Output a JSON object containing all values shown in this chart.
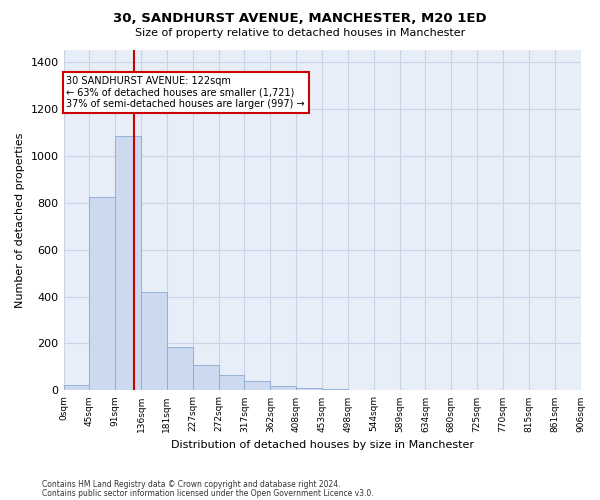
{
  "title": "30, SANDHURST AVENUE, MANCHESTER, M20 1ED",
  "subtitle": "Size of property relative to detached houses in Manchester",
  "xlabel": "Distribution of detached houses by size in Manchester",
  "ylabel": "Number of detached properties",
  "bar_color": "#ccd9ee",
  "bar_edgecolor": "#8aaad4",
  "bar_values": [
    25,
    825,
    1085,
    420,
    185,
    110,
    65,
    40,
    20,
    10,
    5,
    2,
    0,
    0,
    0,
    0,
    0,
    0,
    0,
    0
  ],
  "bin_labels": [
    "0sqm",
    "45sqm",
    "91sqm",
    "136sqm",
    "181sqm",
    "227sqm",
    "272sqm",
    "317sqm",
    "362sqm",
    "408sqm",
    "453sqm",
    "498sqm",
    "544sqm",
    "589sqm",
    "634sqm",
    "680sqm",
    "725sqm",
    "770sqm",
    "815sqm",
    "861sqm",
    "906sqm"
  ],
  "property_line_x": 122,
  "bin_width": 45,
  "ylim": [
    0,
    1450
  ],
  "yticks": [
    0,
    200,
    400,
    600,
    800,
    1000,
    1200,
    1400
  ],
  "annotation_text": "30 SANDHURST AVENUE: 122sqm\n← 63% of detached houses are smaller (1,721)\n37% of semi-detached houses are larger (997) →",
  "annotation_box_color": "#ffffff",
  "annotation_box_edgecolor": "#cc0000",
  "vline_color": "#cc0000",
  "grid_color": "#c8d4e8",
  "background_color": "#e8eef8",
  "footer_line1": "Contains HM Land Registry data © Crown copyright and database right 2024.",
  "footer_line2": "Contains public sector information licensed under the Open Government Licence v3.0."
}
